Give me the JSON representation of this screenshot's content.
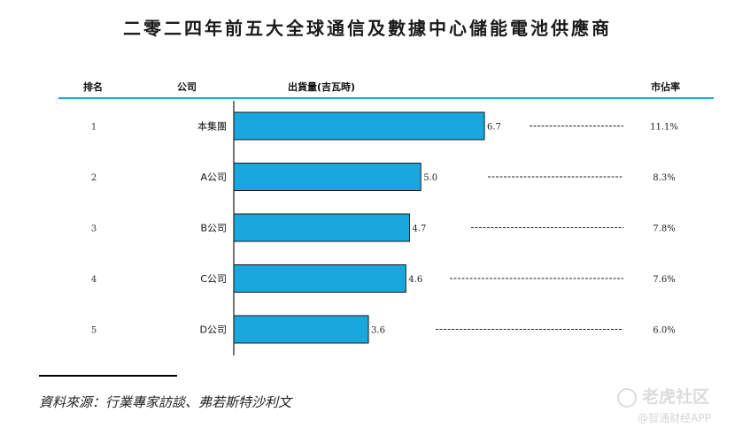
{
  "title": "二零二四年前五大全球通信及數據中心儲能電池供應商",
  "columns": {
    "rank": "排名",
    "company": "公司",
    "shipment": "出貨量(吉瓦時)",
    "share": "市佔率"
  },
  "source": "資料來源：行業專家訪談、弗若斯特沙利文",
  "watermark": {
    "brand": "老虎社区",
    "sub": "@智通财经APP"
  },
  "colors": {
    "bar": "#1aa7de",
    "bar_stroke": "#1a1a1a",
    "header_line": "#1aa7de"
  },
  "chart_data": {
    "type": "bar",
    "orientation": "horizontal",
    "ranks": [
      "1",
      "2",
      "3",
      "4",
      "5"
    ],
    "categories": [
      "本集團",
      "A公司",
      "B公司",
      "C公司",
      "D公司"
    ],
    "values": [
      6.7,
      5.0,
      4.7,
      4.6,
      3.6
    ],
    "value_labels": [
      "6.7",
      "5.0",
      "4.7",
      "4.6",
      "3.6"
    ],
    "shares": [
      "11.1%",
      "8.3%",
      "7.8%",
      "7.6%",
      "6.0%"
    ],
    "xlabel": "出貨量(吉瓦時)",
    "xlim": [
      0,
      6.7
    ],
    "grid": false
  }
}
